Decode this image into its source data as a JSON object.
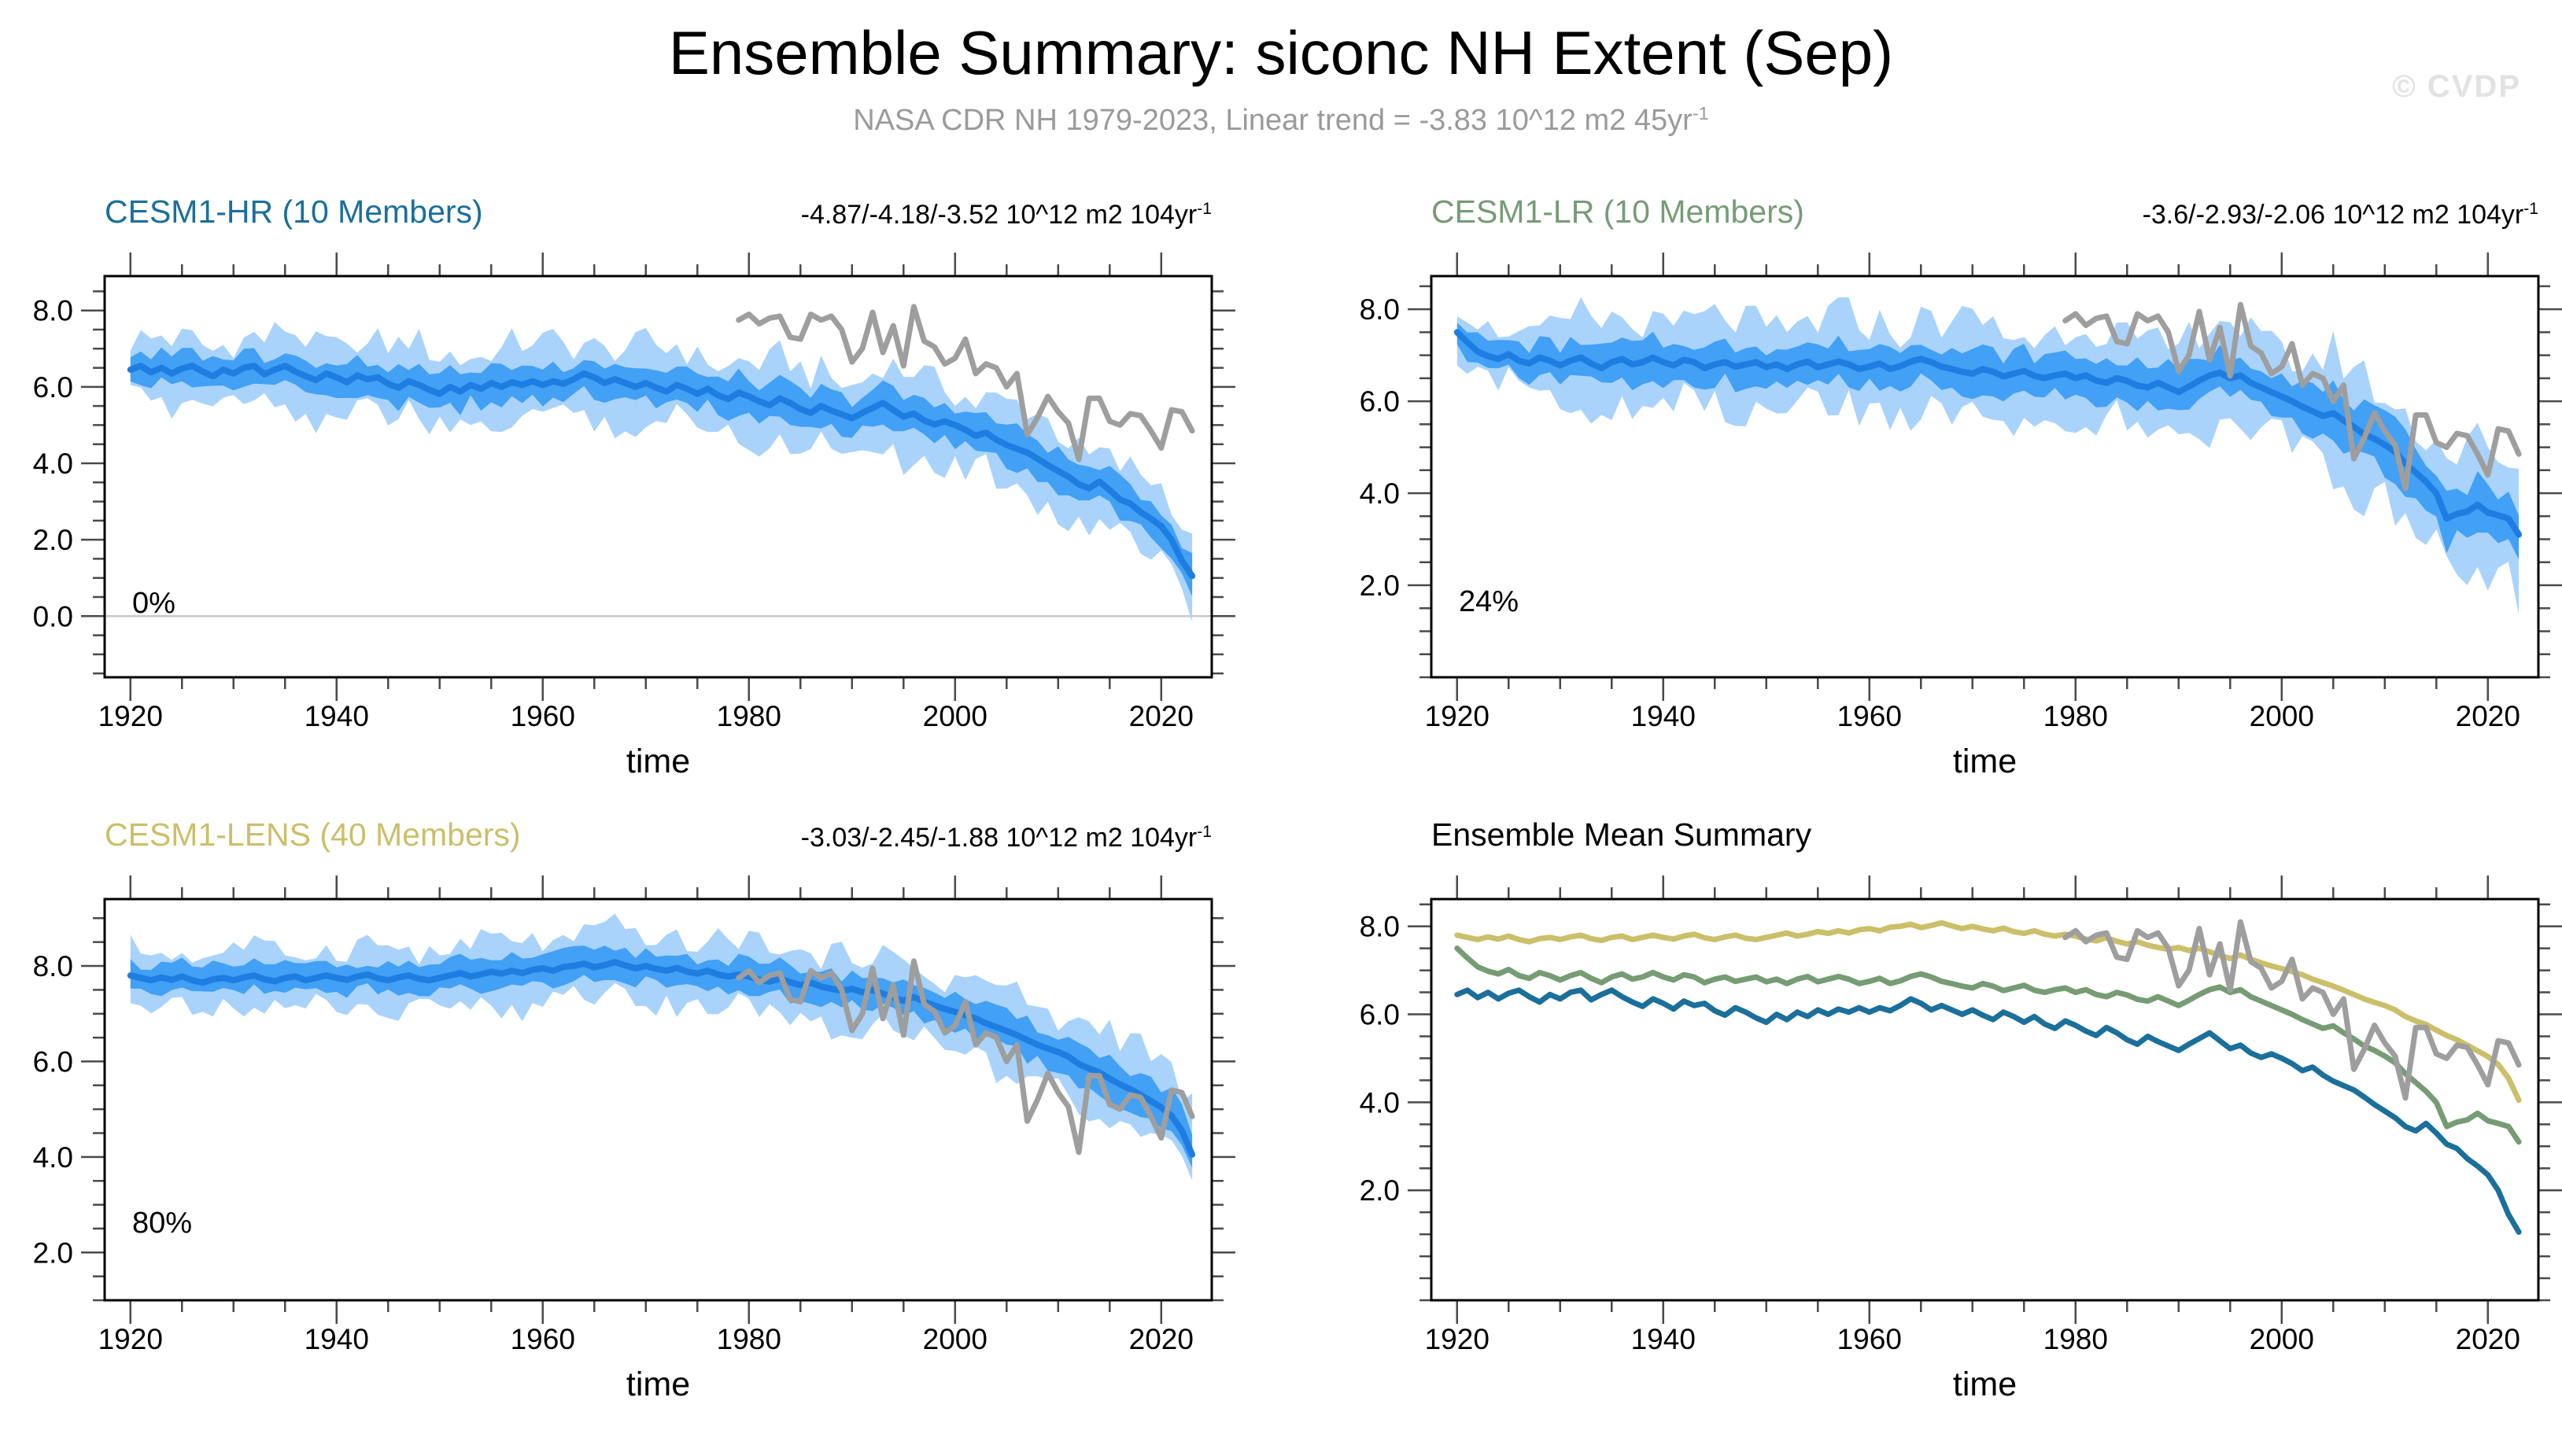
{
  "page": {
    "title": "Ensemble Summary: siconc NH Extent (Sep)",
    "subtitle": "NASA CDR NH 1979-2023, Linear trend = -3.83 10^12 m2 45yr",
    "subtitle_sup": "-1",
    "watermark": "© CVDP"
  },
  "colors": {
    "hr": "#1b6f9b",
    "lr": "#769c74",
    "lens": "#cbbf6a",
    "obs": "#9e9e9e",
    "mean_line": "#1e7de0",
    "band_inner": "#42a0f5",
    "band_outer": "#a9d3fb",
    "zero_line": "#c9c9c9",
    "frame": "#000000",
    "ticks": "#4a4a4a",
    "tick_text": "#000000"
  },
  "obs": {
    "name": "NASA CDR NH",
    "start_year": 1979,
    "values": [
      7.75,
      7.9,
      7.65,
      7.8,
      7.85,
      7.3,
      7.25,
      7.9,
      7.75,
      7.85,
      7.5,
      6.65,
      7.0,
      7.95,
      6.9,
      7.6,
      6.55,
      8.1,
      7.2,
      7.05,
      6.6,
      6.75,
      7.25,
      6.35,
      6.6,
      6.5,
      6.0,
      6.35,
      4.75,
      5.2,
      5.75,
      5.35,
      5.05,
      4.1,
      5.7,
      5.7,
      5.1,
      5.0,
      5.3,
      5.25,
      4.85,
      4.4,
      5.4,
      5.35,
      4.85
    ]
  },
  "chart_data": [
    {
      "type": "area",
      "id": "cesm1-hr",
      "title": "CESM1-HR (10 Members)",
      "title_color_key": "hr",
      "trend": "-4.87/-4.18/-3.52 10^12 m2 104yr",
      "trend_sup": "-1",
      "percent_label": "0%",
      "xlabel": "time",
      "x_start": 1920,
      "x_end": 2023,
      "xlim": [
        1917.5,
        2024.9
      ],
      "xticks": [
        1920,
        1940,
        1960,
        1980,
        2000,
        2020
      ],
      "x_minor_step": 5,
      "ylim": [
        -1.6,
        8.9
      ],
      "ytick_values": [
        8,
        6,
        4,
        2,
        0
      ],
      "ytick_labels": [
        "8.0",
        "6.0",
        "4.0",
        "2.0",
        "0.0"
      ],
      "y_minor_step": 0.5,
      "zero_line": 0.0,
      "obs_overlay": true,
      "mean": [
        6.45,
        6.55,
        6.38,
        6.5,
        6.35,
        6.48,
        6.55,
        6.4,
        6.28,
        6.45,
        6.35,
        6.5,
        6.55,
        6.33,
        6.45,
        6.55,
        6.4,
        6.28,
        6.18,
        6.35,
        6.25,
        6.12,
        6.3,
        6.2,
        6.25,
        6.08,
        5.98,
        6.15,
        6.05,
        5.92,
        5.82,
        6.0,
        5.88,
        6.05,
        5.95,
        6.1,
        6.0,
        6.12,
        6.05,
        6.15,
        6.05,
        6.15,
        6.08,
        6.2,
        6.35,
        6.25,
        6.1,
        6.2,
        6.1,
        6.0,
        6.1,
        5.98,
        5.88,
        6.05,
        5.95,
        5.82,
        5.95,
        5.78,
        5.68,
        5.85,
        5.75,
        5.62,
        5.52,
        5.7,
        5.58,
        5.42,
        5.32,
        5.5,
        5.38,
        5.28,
        5.18,
        5.32,
        5.45,
        5.58,
        5.4,
        5.22,
        5.3,
        5.12,
        5.02,
        5.1,
        5.0,
        4.88,
        4.72,
        4.8,
        4.62,
        4.48,
        4.38,
        4.28,
        4.12,
        3.95,
        3.8,
        3.65,
        3.45,
        3.35,
        3.52,
        3.3,
        3.05,
        2.95,
        2.72,
        2.55,
        2.35,
        2.0,
        1.45,
        1.05
      ],
      "inner_hw_anchors": [
        [
          1920,
          0.4
        ],
        [
          1950,
          0.45
        ],
        [
          1985,
          0.45
        ],
        [
          2005,
          0.5
        ],
        [
          2023,
          0.45
        ]
      ],
      "outer_hw_anchors": [
        [
          1920,
          0.7
        ],
        [
          1945,
          0.95
        ],
        [
          1985,
          0.95
        ],
        [
          2005,
          1.05
        ],
        [
          2023,
          0.85
        ]
      ]
    },
    {
      "type": "area",
      "id": "cesm1-lr",
      "title": "CESM1-LR (10 Members)",
      "title_color_key": "lr",
      "trend": "-3.6/-2.93/-2.06 10^12 m2 104yr",
      "trend_sup": "-1",
      "percent_label": "24%",
      "xlabel": "time",
      "x_start": 1920,
      "x_end": 2023,
      "xlim": [
        1917.5,
        2024.9
      ],
      "xticks": [
        1920,
        1940,
        1960,
        1980,
        2000,
        2020
      ],
      "x_minor_step": 5,
      "ylim": [
        0.0,
        8.72
      ],
      "ytick_values": [
        8,
        6,
        4,
        2
      ],
      "ytick_labels": [
        "8.0",
        "6.0",
        "4.0",
        "2.0"
      ],
      "y_minor_step": 0.5,
      "zero_line": null,
      "obs_overlay": true,
      "mean": [
        7.5,
        7.28,
        7.08,
        6.98,
        6.92,
        7.02,
        6.88,
        6.82,
        6.95,
        6.88,
        6.78,
        6.88,
        6.95,
        6.82,
        6.72,
        6.85,
        6.92,
        6.8,
        6.85,
        6.95,
        6.85,
        6.78,
        6.9,
        6.85,
        6.72,
        6.8,
        6.85,
        6.75,
        6.8,
        6.85,
        6.74,
        6.8,
        6.7,
        6.8,
        6.86,
        6.74,
        6.8,
        6.86,
        6.8,
        6.7,
        6.75,
        6.82,
        6.7,
        6.76,
        6.86,
        6.92,
        6.85,
        6.75,
        6.7,
        6.64,
        6.6,
        6.7,
        6.64,
        6.54,
        6.6,
        6.66,
        6.55,
        6.5,
        6.56,
        6.6,
        6.5,
        6.56,
        6.45,
        6.4,
        6.5,
        6.44,
        6.34,
        6.3,
        6.4,
        6.3,
        6.2,
        6.32,
        6.45,
        6.56,
        6.62,
        6.5,
        6.56,
        6.4,
        6.3,
        6.2,
        6.1,
        6.0,
        5.88,
        5.78,
        5.68,
        5.74,
        5.58,
        5.44,
        5.28,
        5.18,
        5.05,
        4.9,
        4.65,
        4.45,
        4.25,
        4.0,
        3.45,
        3.55,
        3.6,
        3.75,
        3.58,
        3.52,
        3.45,
        3.1
      ],
      "inner_hw_anchors": [
        [
          1920,
          0.3
        ],
        [
          1932,
          0.4
        ],
        [
          1990,
          0.45
        ],
        [
          2008,
          0.55
        ],
        [
          2023,
          0.55
        ]
      ],
      "outer_hw_anchors": [
        [
          1920,
          0.45
        ],
        [
          1932,
          0.85
        ],
        [
          1990,
          1.0
        ],
        [
          2008,
          1.15
        ],
        [
          2023,
          1.2
        ]
      ]
    },
    {
      "type": "area",
      "id": "cesm1-lens",
      "title": "CESM1-LENS (40 Members)",
      "title_color_key": "lens",
      "trend": "-3.03/-2.45/-1.88 10^12 m2 104yr",
      "trend_sup": "-1",
      "percent_label": "80%",
      "xlabel": "time",
      "x_start": 1920,
      "x_end": 2023,
      "xlim": [
        1917.5,
        2024.9
      ],
      "xticks": [
        1920,
        1940,
        1960,
        1980,
        2000,
        2020
      ],
      "x_minor_step": 5,
      "ylim": [
        1.0,
        9.4
      ],
      "ytick_values": [
        8,
        6,
        4,
        2
      ],
      "ytick_labels": [
        "8.0",
        "6.0",
        "4.0",
        "2.0"
      ],
      "y_minor_step": 0.5,
      "zero_line": null,
      "obs_overlay": true,
      "mean": [
        7.8,
        7.75,
        7.7,
        7.76,
        7.71,
        7.78,
        7.7,
        7.65,
        7.72,
        7.75,
        7.7,
        7.76,
        7.8,
        7.72,
        7.68,
        7.75,
        7.78,
        7.7,
        7.75,
        7.8,
        7.75,
        7.71,
        7.78,
        7.82,
        7.74,
        7.7,
        7.76,
        7.8,
        7.73,
        7.7,
        7.75,
        7.8,
        7.85,
        7.78,
        7.82,
        7.88,
        7.84,
        7.9,
        7.85,
        7.92,
        7.95,
        7.9,
        7.98,
        8.0,
        8.05,
        7.97,
        8.02,
        8.08,
        8.01,
        7.95,
        8.0,
        7.94,
        7.9,
        7.96,
        7.88,
        7.84,
        7.9,
        7.82,
        7.78,
        7.82,
        7.78,
        7.71,
        7.67,
        7.74,
        7.66,
        7.6,
        7.65,
        7.57,
        7.52,
        7.48,
        7.52,
        7.45,
        7.5,
        7.42,
        7.34,
        7.27,
        7.35,
        7.25,
        7.17,
        7.1,
        7.04,
        6.97,
        6.9,
        6.8,
        6.72,
        6.64,
        6.55,
        6.45,
        6.35,
        6.27,
        6.2,
        6.1,
        5.95,
        5.85,
        5.77,
        5.64,
        5.52,
        5.42,
        5.3,
        5.17,
        5.04,
        4.86,
        4.55,
        4.05
      ],
      "inner_hw_anchors": [
        [
          1920,
          0.28
        ],
        [
          1960,
          0.3
        ],
        [
          2000,
          0.33
        ],
        [
          2023,
          0.45
        ]
      ],
      "outer_hw_anchors": [
        [
          1920,
          0.55
        ],
        [
          1960,
          0.62
        ],
        [
          2000,
          0.72
        ],
        [
          2023,
          1.0
        ]
      ]
    },
    {
      "type": "line",
      "id": "ensemble-mean-summary",
      "title": "Ensemble Mean Summary",
      "title_color_key": null,
      "trend": null,
      "percent_label": null,
      "xlabel": "time",
      "x_start": 1920,
      "x_end": 2023,
      "xlim": [
        1917.5,
        2024.9
      ],
      "xticks": [
        1920,
        1940,
        1960,
        1980,
        2000,
        2020
      ],
      "x_minor_step": 5,
      "ylim": [
        -0.5,
        8.62
      ],
      "ytick_values": [
        8,
        6,
        4,
        2
      ],
      "ytick_labels": [
        "8.0",
        "6.0",
        "4.0",
        "2.0"
      ],
      "y_minor_step": 0.5,
      "zero_line": null,
      "obs_overlay": true,
      "series": [
        {
          "name": "CESM1-LENS",
          "data_ref": 2,
          "color_key": "lens"
        },
        {
          "name": "CESM1-LR",
          "data_ref": 1,
          "color_key": "lr"
        },
        {
          "name": "CESM1-HR",
          "data_ref": 0,
          "color_key": "hr"
        }
      ]
    }
  ]
}
